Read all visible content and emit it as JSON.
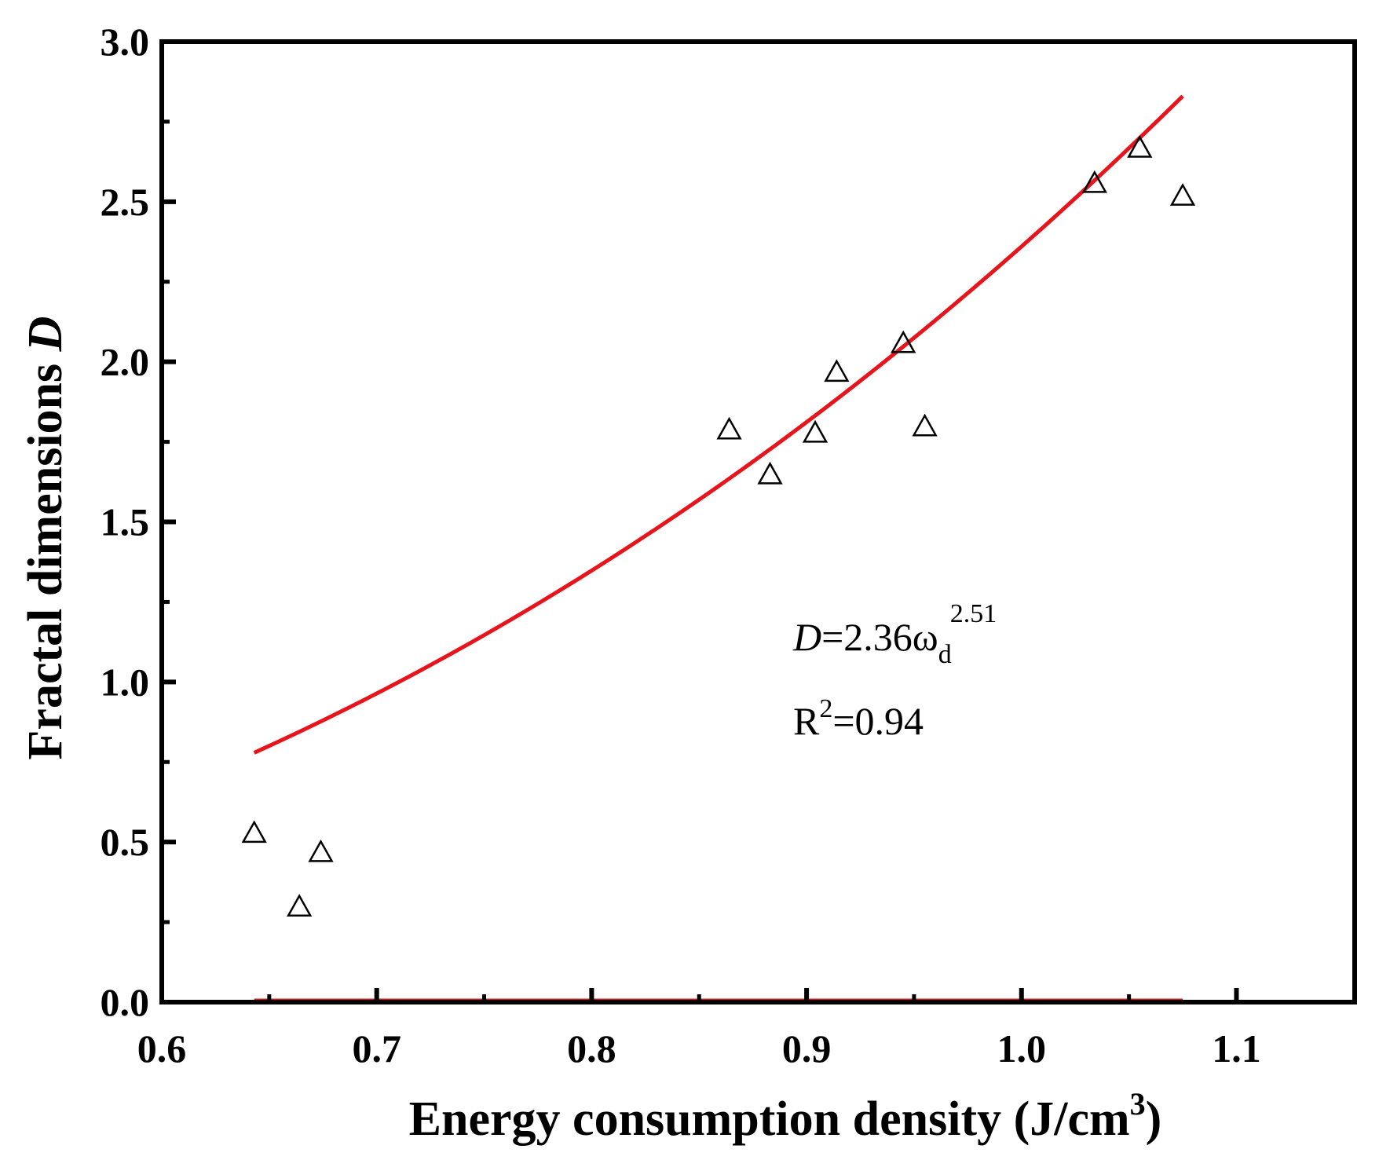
{
  "chart_data": {
    "type": "scatter",
    "xlabel": "Energy consumption density (J/cm",
    "xlabel_sup": "3",
    "xlabel_close": ")",
    "ylabel": "Fractal dimensions ",
    "ylabel_var": "D",
    "xlim": [
      0.6,
      1.155
    ],
    "ylim": [
      0.0,
      3.0
    ],
    "xticks": [
      0.6,
      0.7,
      0.8,
      0.9,
      1.0,
      1.1
    ],
    "xtick_labels": [
      "0.6",
      "0.7",
      "0.8",
      "0.9",
      "1.0",
      "1.1"
    ],
    "yticks": [
      0.0,
      0.5,
      1.0,
      1.5,
      2.0,
      2.5,
      3.0
    ],
    "ytick_labels": [
      "0.0",
      "0.5",
      "1.0",
      "1.5",
      "2.0",
      "2.5",
      "3.0"
    ],
    "grid": false,
    "series": [
      {
        "marker": "open-triangle",
        "color": "#000000",
        "x": [
          0.643,
          0.664,
          0.674,
          0.864,
          0.883,
          0.904,
          0.914,
          0.945,
          0.955,
          1.034,
          1.055,
          1.075
        ],
        "y": [
          0.53,
          0.3,
          0.47,
          1.79,
          1.65,
          1.78,
          1.97,
          2.06,
          1.8,
          2.56,
          2.67,
          2.52
        ]
      }
    ],
    "fit": {
      "color": "#e8141b",
      "coefficient": 2.36,
      "exponent": 2.51,
      "x_range": [
        0.643,
        1.075
      ]
    },
    "baseline": {
      "color": "#e8141b",
      "y": 0.0,
      "x_range": [
        0.643,
        1.075
      ]
    },
    "annotation": {
      "eq_var": "D",
      "eq_body": "=2.36ω",
      "eq_sub": "d",
      "eq_sup": "2.51",
      "r2_prefix": "R",
      "r2_sup": "2",
      "r2_value": "=0.94"
    }
  }
}
